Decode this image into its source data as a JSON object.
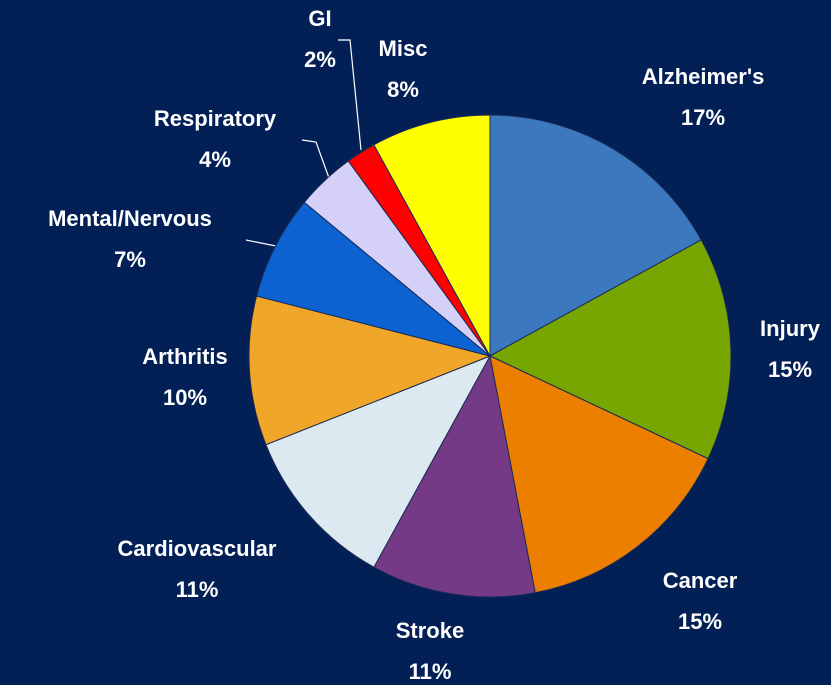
{
  "chart_data": {
    "type": "pie",
    "categories": [
      "Alzheimer's",
      "Injury",
      "Cancer",
      "Stroke",
      "Cardiovascular",
      "Arthritis",
      "Mental/Nervous",
      "Respiratory",
      "GI",
      "Misc"
    ],
    "values": [
      17,
      15,
      15,
      11,
      11,
      10,
      7,
      4,
      2,
      8
    ],
    "value_labels": [
      "17%",
      "15%",
      "15%",
      "11%",
      "11%",
      "10%",
      "7%",
      "4%",
      "2%",
      "8%"
    ],
    "colors": [
      "#3c78be",
      "#78a600",
      "#ec7e00",
      "#753a86",
      "#dde9f0",
      "#f0a628",
      "#0b62d0",
      "#d4d0f8",
      "#ff0000",
      "#ffff00"
    ]
  }
}
